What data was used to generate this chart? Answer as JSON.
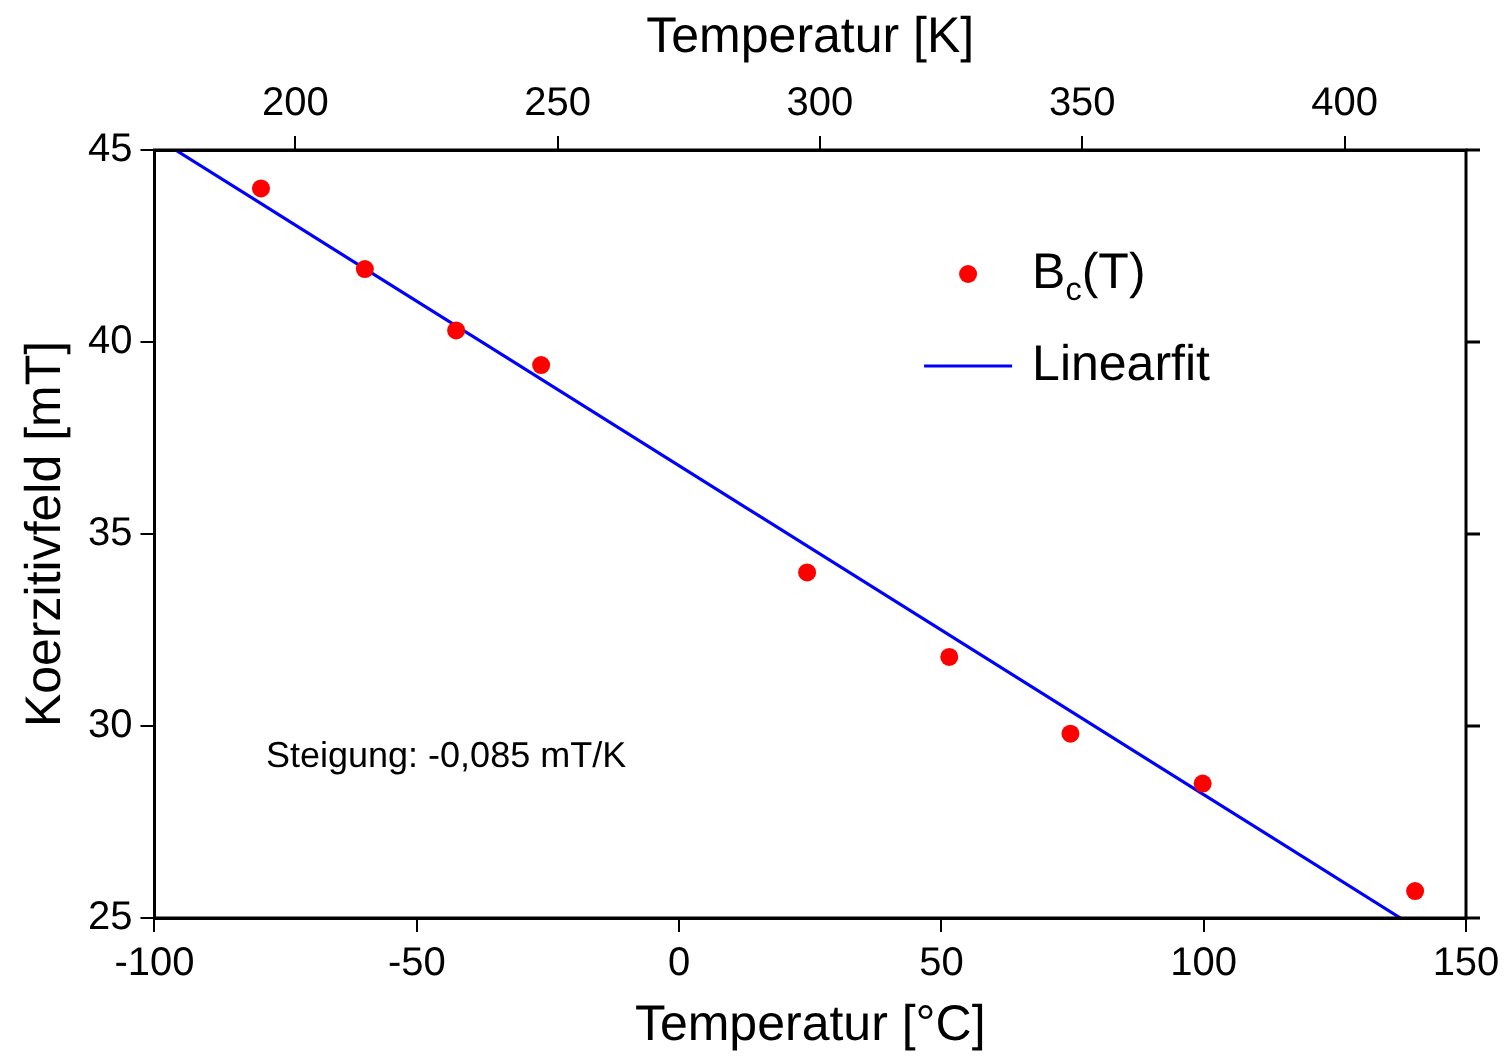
{
  "chart_data": {
    "type": "scatter",
    "xlabel": "Temperatur [°C]",
    "x2label": "Temperatur [K]",
    "ylabel": "Koerzitivfeld [mT]",
    "xlim": [
      -100,
      150
    ],
    "xticks": [
      -100,
      -50,
      0,
      50,
      100,
      150
    ],
    "x2lim": [
      173.15,
      423.15
    ],
    "x2ticks": [
      200,
      250,
      300,
      350,
      400
    ],
    "ylim": [
      25,
      45
    ],
    "yticks": [
      25,
      30,
      35,
      40,
      45
    ],
    "series": [
      {
        "name": "B$_{c}$(T)",
        "type": "scatter",
        "color": "#ff0000",
        "marker": "circle",
        "x": [
          -79.7,
          -59.9,
          -42.5,
          -26.3,
          24.4,
          51.5,
          74.6,
          99.8,
          140.3
        ],
        "values": [
          44.0,
          41.9,
          40.3,
          39.4,
          34.0,
          31.8,
          29.8,
          28.5,
          25.7
        ]
      },
      {
        "name": "Linearfit",
        "type": "line",
        "color": "#0000ff",
        "marker": "none",
        "line_style": "solid",
        "x": [
          -96,
          137.5
        ],
        "values": [
          45,
          25
        ]
      }
    ],
    "annotations": [
      "Steigung: -0,085 mT/K"
    ],
    "legend": "top right",
    "grid": false
  }
}
